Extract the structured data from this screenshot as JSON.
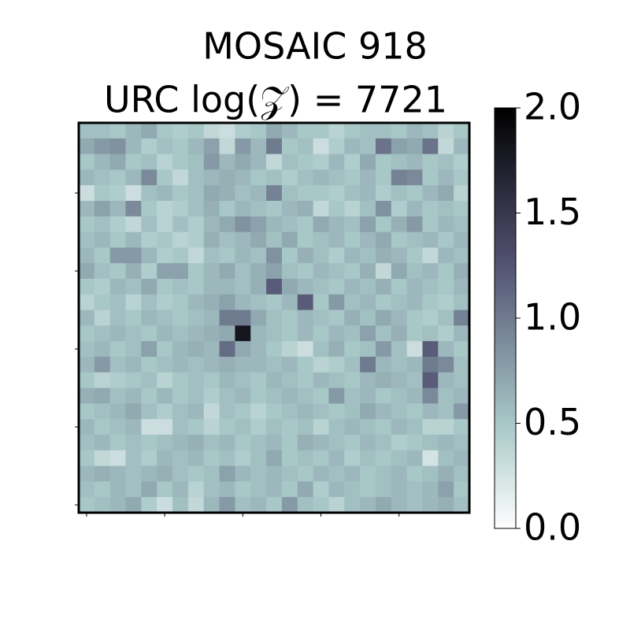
{
  "chart_data": {
    "type": "heatmap",
    "title": "MOSAIC 918",
    "subtitle": "URC log(𝒵) = 7721",
    "colormap": "bone_r",
    "zlim": [
      0,
      2
    ],
    "zticks": [
      {
        "value": 0,
        "label": "0.0"
      },
      {
        "value": 0.5,
        "label": "0.5"
      },
      {
        "value": 1,
        "label": "1.0"
      },
      {
        "value": 1.5,
        "label": "1.5"
      },
      {
        "value": 2,
        "label": "2.0"
      }
    ],
    "xticks": [
      0,
      5,
      10,
      15,
      20
    ],
    "yticks": [
      0,
      5,
      10,
      15,
      20
    ],
    "z": [
      [
        0.55,
        0.55,
        0.5,
        0.6,
        0.7,
        0.5,
        0.45,
        0.5,
        0.35,
        0.3,
        0.45,
        0.5,
        0.7,
        0.6,
        0.5,
        0.5,
        0.4,
        0.5,
        0.55,
        0.55,
        0.5,
        0.6,
        0.55,
        0.4,
        0.5
      ],
      [
        0.7,
        0.8,
        0.85,
        0.6,
        0.45,
        0.55,
        0.5,
        0.6,
        0.75,
        0.35,
        0.8,
        0.6,
        1.0,
        0.5,
        0.55,
        0.3,
        0.45,
        0.6,
        0.55,
        1.05,
        0.75,
        0.7,
        1.05,
        0.35,
        0.6
      ],
      [
        0.5,
        0.6,
        0.7,
        0.5,
        0.55,
        0.4,
        0.5,
        0.55,
        0.8,
        0.6,
        0.7,
        0.6,
        0.35,
        0.55,
        0.5,
        0.45,
        0.6,
        0.45,
        0.7,
        0.5,
        0.55,
        0.6,
        0.5,
        0.55,
        0.45
      ],
      [
        0.6,
        0.55,
        0.5,
        0.6,
        0.9,
        0.5,
        0.35,
        0.55,
        0.6,
        0.65,
        0.6,
        0.5,
        0.55,
        0.45,
        0.55,
        0.6,
        0.55,
        0.5,
        0.6,
        0.5,
        0.95,
        0.9,
        0.5,
        0.6,
        0.5
      ],
      [
        0.3,
        0.5,
        0.45,
        0.3,
        0.55,
        0.6,
        0.5,
        0.55,
        0.7,
        0.65,
        0.55,
        0.6,
        0.95,
        0.55,
        0.5,
        0.5,
        0.45,
        0.55,
        0.6,
        0.45,
        0.55,
        0.5,
        0.6,
        0.7,
        0.4
      ],
      [
        0.6,
        0.75,
        0.6,
        0.9,
        0.5,
        0.4,
        0.45,
        0.55,
        0.65,
        0.5,
        0.6,
        0.55,
        0.5,
        0.6,
        0.65,
        0.35,
        0.5,
        0.4,
        0.55,
        0.85,
        0.45,
        0.6,
        0.5,
        0.55,
        0.5
      ],
      [
        0.5,
        0.55,
        0.45,
        0.35,
        0.55,
        0.4,
        0.55,
        0.45,
        0.6,
        0.7,
        0.85,
        0.75,
        0.6,
        0.55,
        0.5,
        0.7,
        0.6,
        0.55,
        0.75,
        0.5,
        0.65,
        0.8,
        0.5,
        0.6,
        0.55
      ],
      [
        0.55,
        0.6,
        0.5,
        0.6,
        0.45,
        0.5,
        0.4,
        0.45,
        0.65,
        0.55,
        0.6,
        0.7,
        0.55,
        0.7,
        0.5,
        0.55,
        0.6,
        0.5,
        0.6,
        0.7,
        0.5,
        0.55,
        0.6,
        0.5,
        0.6
      ],
      [
        0.6,
        0.5,
        0.8,
        0.8,
        0.6,
        0.45,
        0.5,
        0.35,
        0.55,
        0.5,
        0.6,
        0.55,
        0.85,
        0.5,
        0.65,
        0.55,
        0.45,
        0.6,
        0.55,
        0.65,
        0.6,
        0.5,
        0.35,
        0.6,
        0.55
      ],
      [
        0.7,
        0.55,
        0.5,
        0.65,
        0.45,
        0.75,
        0.75,
        0.5,
        0.6,
        0.7,
        0.55,
        0.65,
        0.75,
        0.55,
        0.5,
        0.6,
        0.55,
        0.5,
        0.65,
        0.35,
        0.7,
        0.55,
        0.6,
        0.5,
        0.65
      ],
      [
        0.5,
        0.45,
        0.6,
        0.55,
        0.7,
        0.5,
        0.55,
        0.5,
        0.6,
        0.6,
        0.55,
        0.65,
        1.2,
        0.7,
        0.6,
        0.55,
        0.5,
        0.6,
        0.55,
        0.65,
        0.5,
        0.6,
        0.55,
        0.5,
        0.6
      ],
      [
        0.4,
        0.5,
        0.55,
        0.4,
        0.55,
        0.45,
        0.5,
        0.6,
        0.65,
        0.75,
        0.6,
        0.55,
        0.5,
        0.6,
        1.2,
        0.5,
        0.8,
        0.55,
        0.6,
        0.5,
        0.55,
        0.6,
        0.5,
        0.45,
        0.55
      ],
      [
        0.6,
        0.4,
        0.55,
        0.5,
        0.6,
        0.55,
        0.5,
        0.55,
        0.6,
        1.0,
        1.0,
        0.7,
        0.55,
        0.5,
        0.6,
        0.55,
        0.5,
        0.65,
        0.55,
        0.7,
        0.6,
        0.5,
        0.45,
        0.55,
        0.95
      ],
      [
        0.5,
        0.55,
        0.6,
        0.55,
        0.5,
        0.6,
        0.55,
        0.6,
        0.65,
        0.7,
        1.8,
        0.6,
        0.55,
        0.5,
        0.6,
        0.5,
        0.6,
        0.55,
        0.75,
        0.55,
        0.65,
        0.5,
        0.55,
        0.45,
        0.6
      ],
      [
        0.55,
        0.6,
        0.5,
        0.55,
        0.75,
        0.5,
        0.6,
        0.65,
        0.6,
        1.1,
        0.7,
        0.6,
        0.5,
        0.4,
        0.3,
        0.55,
        0.65,
        0.5,
        0.55,
        0.8,
        0.55,
        0.3,
        1.2,
        0.6,
        0.5
      ],
      [
        0.6,
        0.8,
        0.55,
        0.6,
        0.5,
        0.55,
        0.6,
        0.55,
        0.6,
        0.65,
        0.6,
        0.6,
        0.55,
        0.6,
        0.5,
        0.4,
        0.45,
        0.55,
        1.0,
        0.6,
        0.55,
        0.6,
        1.0,
        0.9,
        0.55
      ],
      [
        0.5,
        0.4,
        0.45,
        0.5,
        0.55,
        0.4,
        0.5,
        0.55,
        0.5,
        0.6,
        0.55,
        0.5,
        0.6,
        0.55,
        0.5,
        0.6,
        0.55,
        0.5,
        0.6,
        0.65,
        0.6,
        0.55,
        1.2,
        0.6,
        0.55
      ],
      [
        0.65,
        0.7,
        0.55,
        0.6,
        0.5,
        0.6,
        0.5,
        0.55,
        0.45,
        0.55,
        0.6,
        0.5,
        0.55,
        0.6,
        0.55,
        0.5,
        0.8,
        0.55,
        0.6,
        0.5,
        0.55,
        0.6,
        0.9,
        0.55,
        0.6
      ],
      [
        0.5,
        0.55,
        0.6,
        0.7,
        0.55,
        0.45,
        0.55,
        0.6,
        0.35,
        0.55,
        0.5,
        0.4,
        0.5,
        0.55,
        0.6,
        0.55,
        0.5,
        0.55,
        0.7,
        0.6,
        0.55,
        0.5,
        0.6,
        0.55,
        0.8
      ],
      [
        0.6,
        0.5,
        0.55,
        0.6,
        0.3,
        0.3,
        0.55,
        0.5,
        0.4,
        0.5,
        0.55,
        0.45,
        0.55,
        0.5,
        0.55,
        0.4,
        0.55,
        0.6,
        0.55,
        0.5,
        0.6,
        0.55,
        0.4,
        0.4,
        0.5
      ],
      [
        0.55,
        0.6,
        0.5,
        0.55,
        0.5,
        0.55,
        0.6,
        0.65,
        0.55,
        0.6,
        0.5,
        0.55,
        0.6,
        0.5,
        0.65,
        0.6,
        0.55,
        0.5,
        0.6,
        0.55,
        0.45,
        0.5,
        0.55,
        0.6,
        0.55
      ],
      [
        0.5,
        0.35,
        0.3,
        0.55,
        0.45,
        0.6,
        0.55,
        0.6,
        0.5,
        0.55,
        0.45,
        0.55,
        0.7,
        0.5,
        0.55,
        0.5,
        0.6,
        0.45,
        0.55,
        0.5,
        0.55,
        0.6,
        0.25,
        0.55,
        0.6
      ],
      [
        0.6,
        0.65,
        0.6,
        0.55,
        0.6,
        0.65,
        0.55,
        0.5,
        0.55,
        0.75,
        0.6,
        0.55,
        0.6,
        0.55,
        0.5,
        0.6,
        0.55,
        0.6,
        0.5,
        0.55,
        0.6,
        0.5,
        0.55,
        0.65,
        0.55
      ],
      [
        0.55,
        0.5,
        0.6,
        0.55,
        0.7,
        0.5,
        0.6,
        0.4,
        0.55,
        0.6,
        0.5,
        0.55,
        0.6,
        0.5,
        0.7,
        0.45,
        0.6,
        0.55,
        0.5,
        0.55,
        0.6,
        0.55,
        0.6,
        0.75,
        0.5
      ],
      [
        0.5,
        0.55,
        0.6,
        0.7,
        0.45,
        0.3,
        0.55,
        0.35,
        0.6,
        0.8,
        0.55,
        0.6,
        0.5,
        0.8,
        0.55,
        0.5,
        0.4,
        0.55,
        0.6,
        0.7,
        0.6,
        0.55,
        0.6,
        0.65,
        0.55
      ]
    ]
  }
}
